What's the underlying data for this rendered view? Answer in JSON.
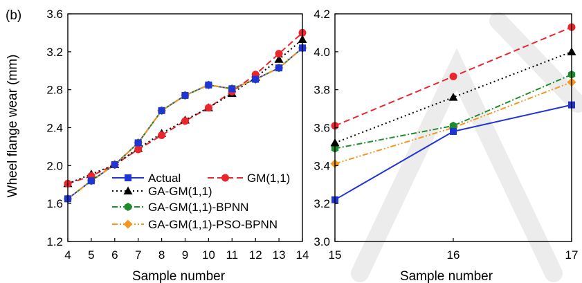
{
  "panel_label": "(b)",
  "shared_ylabel": "Wheel flange wear (mm)",
  "colors": {
    "Actual": "#1f35d6",
    "GM(1,1)": "#e8262b",
    "GA-GM(1,1)": "#000000",
    "GA-GM(1,1)-BPNN": "#1e8c2c",
    "GA-GM(1,1)-PSO-BPNN": "#f5961e"
  },
  "chart_data": [
    {
      "type": "line",
      "xlabel": "Sample number",
      "ylabel": "Wheel flange wear (mm)",
      "xlim": [
        4,
        14
      ],
      "ylim": [
        1.2,
        3.6
      ],
      "xticks": [
        4,
        5,
        6,
        7,
        8,
        9,
        10,
        11,
        12,
        13,
        14
      ],
      "yticks": [
        1.2,
        1.6,
        2.0,
        2.4,
        2.8,
        3.2,
        3.6
      ],
      "ytick_labels": [
        "1.2",
        "1.6",
        "2.0",
        "2.4",
        "2.8",
        "3.2",
        "3.6"
      ],
      "x": [
        4,
        5,
        6,
        7,
        8,
        9,
        10,
        11,
        12,
        13,
        14
      ],
      "legend_position": "lower-right",
      "series": [
        {
          "name": "Actual",
          "marker": "square",
          "dash": "solid",
          "values": [
            1.65,
            1.84,
            2.01,
            2.24,
            2.58,
            2.74,
            2.85,
            2.81,
            2.91,
            3.03,
            3.24
          ]
        },
        {
          "name": "GM(1,1)",
          "marker": "circle",
          "dash": "dashed",
          "values": [
            1.81,
            1.89,
            2.01,
            2.17,
            2.32,
            2.47,
            2.61,
            2.78,
            2.96,
            3.18,
            3.4
          ]
        },
        {
          "name": "GA-GM(1,1)",
          "marker": "triangle",
          "dash": "dotted",
          "values": [
            1.81,
            1.91,
            2.01,
            2.18,
            2.34,
            2.48,
            2.61,
            2.76,
            2.93,
            3.12,
            3.33
          ]
        },
        {
          "name": "GA-GM(1,1)-BPNN",
          "marker": "hexagon",
          "dash": "dashdot",
          "values": [
            1.65,
            1.84,
            2.01,
            2.24,
            2.58,
            2.74,
            2.85,
            2.81,
            2.91,
            3.03,
            3.24
          ]
        },
        {
          "name": "GA-GM(1,1)-PSO-BPNN",
          "marker": "diamond",
          "dash": "dashdotdot",
          "values": [
            1.65,
            1.84,
            2.01,
            2.24,
            2.58,
            2.74,
            2.85,
            2.81,
            2.91,
            3.03,
            3.24
          ]
        }
      ]
    },
    {
      "type": "line",
      "xlabel": "Sample number",
      "ylabel": "",
      "xlim": [
        15,
        17
      ],
      "ylim": [
        3.0,
        4.2
      ],
      "xticks": [
        15,
        16,
        17
      ],
      "yticks": [
        3.0,
        3.2,
        3.4,
        3.6,
        3.8,
        4.0,
        4.2
      ],
      "ytick_labels": [
        "3.0",
        "3.2",
        "3.4",
        "3.6",
        "3.8",
        "4.0",
        "4.2"
      ],
      "x": [
        15,
        16,
        17
      ],
      "series": [
        {
          "name": "Actual",
          "marker": "square",
          "dash": "solid",
          "values": [
            3.22,
            3.58,
            3.72
          ]
        },
        {
          "name": "GM(1,1)",
          "marker": "circle",
          "dash": "dashed",
          "values": [
            3.61,
            3.87,
            4.13
          ]
        },
        {
          "name": "GA-GM(1,1)",
          "marker": "triangle",
          "dash": "dotted",
          "values": [
            3.52,
            3.76,
            4.0
          ]
        },
        {
          "name": "GA-GM(1,1)-BPNN",
          "marker": "hexagon",
          "dash": "dashdot",
          "values": [
            3.49,
            3.61,
            3.88
          ]
        },
        {
          "name": "GA-GM(1,1)-PSO-BPNN",
          "marker": "diamond",
          "dash": "dashdotdot",
          "values": [
            3.41,
            3.6,
            3.84
          ]
        }
      ]
    }
  ]
}
